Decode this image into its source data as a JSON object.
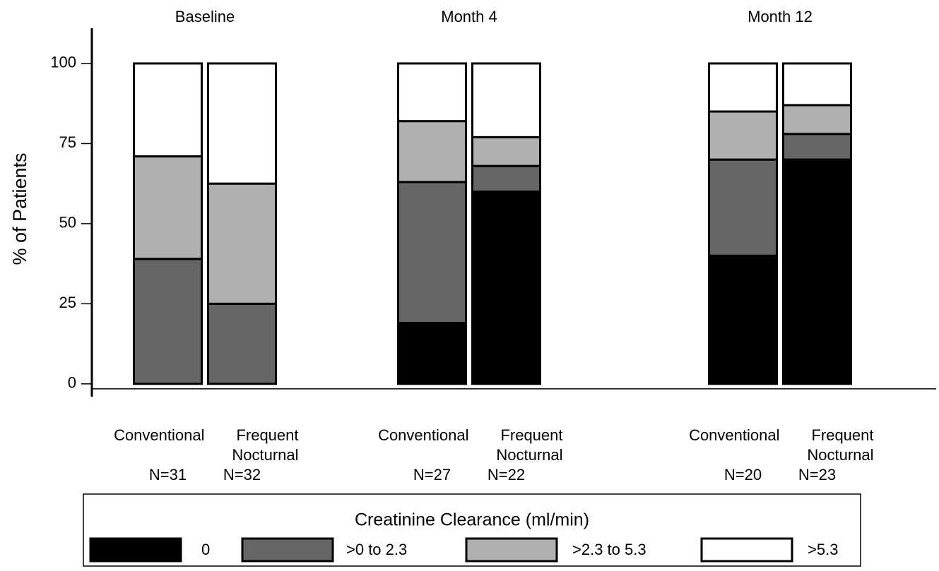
{
  "chart_data": {
    "type": "bar",
    "stacked": true,
    "y_label": "% of Patients",
    "groups": [
      "Baseline",
      "Month 4",
      "Month 12"
    ],
    "categories": [
      "Conventional",
      "Frequent Nocturnal",
      "Conventional",
      "Frequent Nocturnal",
      "Conventional",
      "Frequent Nocturnal"
    ],
    "group_of_category": [
      0,
      0,
      1,
      1,
      2,
      2
    ],
    "sample_sizes": [
      "N=31",
      "N=32",
      "N=27",
      "N=22",
      "N=20",
      "N=23"
    ],
    "series": [
      {
        "name": "0",
        "color": "#000000",
        "values": [
          0,
          0,
          19,
          60,
          40,
          70
        ]
      },
      {
        "name": ">0 to 2.3",
        "color": "#666666",
        "values": [
          39,
          25,
          44,
          8,
          30,
          8
        ]
      },
      {
        "name": ">2.3 to 5.3",
        "color": "#b0b0b0",
        "values": [
          32,
          37.5,
          19,
          9,
          15,
          9
        ]
      },
      {
        "name": ">5.3",
        "color": "#ffffff",
        "values": [
          29,
          37.5,
          18,
          23,
          15,
          13
        ]
      }
    ],
    "legend_title": "Creatinine Clearance (ml/min)",
    "ylim": [
      -4,
      111
    ],
    "yticks": [
      0,
      25,
      50,
      75,
      100
    ],
    "grid": false
  }
}
